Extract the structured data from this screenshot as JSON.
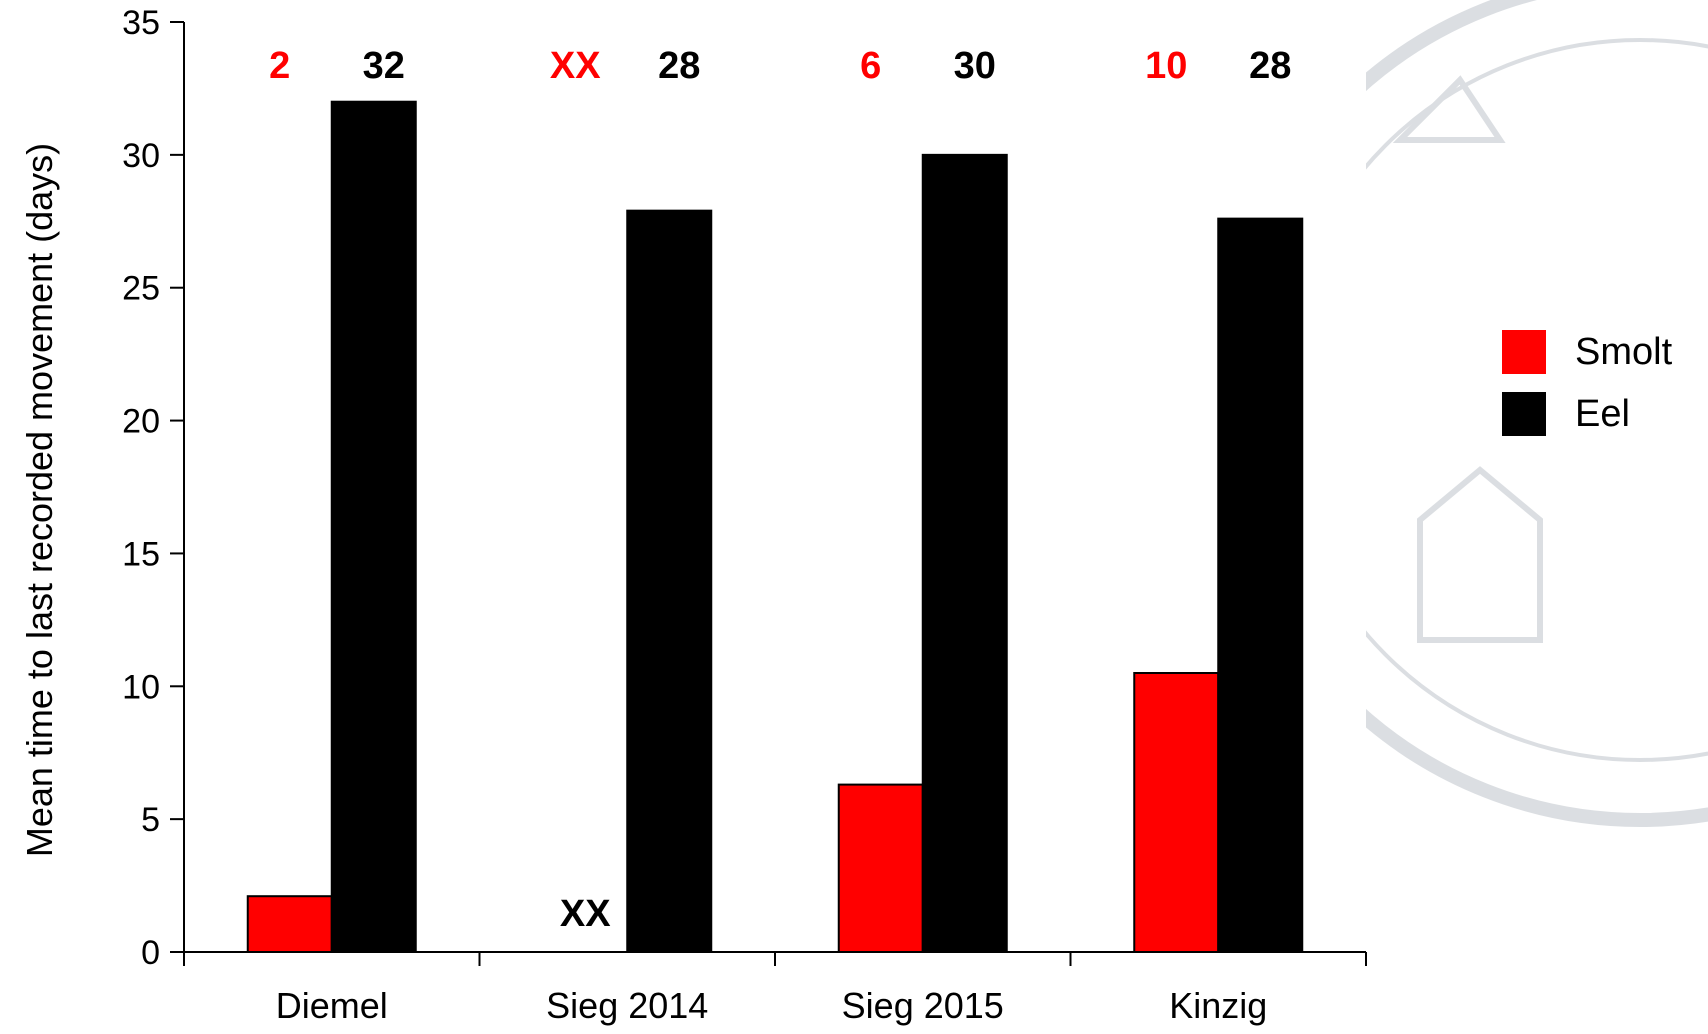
{
  "chart_data": {
    "type": "bar",
    "title": "",
    "xlabel": "",
    "ylabel": "Mean time to last recorded movement (days)",
    "ylim": [
      0,
      35
    ],
    "yticks": [
      0,
      5,
      10,
      15,
      20,
      25,
      30,
      35
    ],
    "categories": [
      "Diemel",
      "Sieg 2014",
      "Sieg 2015",
      "Kinzig"
    ],
    "series": [
      {
        "name": "Smolt",
        "color": "#ff0000",
        "values": [
          2.1,
          null,
          6.3,
          10.5
        ],
        "labels": [
          "2",
          "XX",
          "6",
          "10"
        ],
        "label_color": "#ff0000"
      },
      {
        "name": "Eel",
        "color": "#000000",
        "values": [
          32,
          27.9,
          30,
          27.6
        ],
        "labels": [
          "32",
          "28",
          "30",
          "28"
        ],
        "label_color": "#000000"
      }
    ],
    "annotations": [
      {
        "text": "XX",
        "category": "Sieg 2014",
        "series": "Smolt",
        "y": 1.5,
        "color": "#000000"
      }
    ],
    "legend": {
      "placement": "right",
      "entries": [
        "Smolt",
        "Eel"
      ]
    },
    "grid": false
  }
}
